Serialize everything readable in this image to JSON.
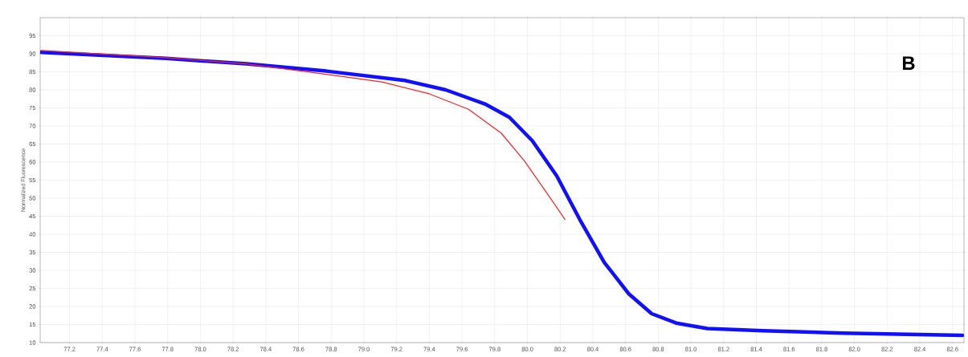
{
  "chart_data": {
    "type": "line",
    "ylabel": "Normalized Fluorescence",
    "annotations": [
      "**B**"
    ],
    "series": [
      {
        "color": "#ff2020",
        "x": [
          77.025,
          77.79,
          78.28,
          78.77,
          79.11,
          79.4,
          79.64,
          79.84,
          79.98,
          80.13,
          80.23
        ],
        "values": [
          90.9,
          88.9,
          87.2,
          84.3,
          82.2,
          78.9,
          74.6,
          68.0,
          60.4,
          50.7,
          44.1
        ]
      },
      {
        "color": "#1010ff",
        "x": [
          77.025,
          77.79,
          78.28,
          78.77,
          79.25,
          79.5,
          79.74,
          79.89,
          80.03,
          80.18,
          80.32,
          80.47,
          80.62,
          80.76,
          80.91,
          81.1,
          81.44,
          81.93,
          82.66
        ],
        "values": [
          90.4,
          88.7,
          87.2,
          85.2,
          82.6,
          80.0,
          76.1,
          72.4,
          65.9,
          56.1,
          44.1,
          32.2,
          23.5,
          18.0,
          15.4,
          13.9,
          13.3,
          12.6,
          12.0
        ]
      }
    ],
    "xlim": [
      77.02,
      82.67
    ],
    "xticks": [
      {
        "value": 77.2,
        "label": "77.2"
      },
      {
        "value": 77.4,
        "label": "77.4"
      },
      {
        "value": 77.6,
        "label": "77.6"
      },
      {
        "value": 77.8,
        "label": "77.8"
      },
      {
        "value": 78.0,
        "label": "78.0"
      },
      {
        "value": 78.2,
        "label": "78.2"
      },
      {
        "value": 78.4,
        "label": "78.4"
      },
      {
        "value": 78.6,
        "label": "78.6"
      },
      {
        "value": 78.8,
        "label": "78.8"
      },
      {
        "value": 79.0,
        "label": "79.0"
      },
      {
        "value": 79.2,
        "label": "79.2"
      },
      {
        "value": 79.4,
        "label": "79.4"
      },
      {
        "value": 79.6,
        "label": "79.6"
      },
      {
        "value": 79.8,
        "label": "79.8"
      },
      {
        "value": 80.0,
        "label": "80.0"
      },
      {
        "value": 80.2,
        "label": "80.2"
      },
      {
        "value": 80.4,
        "label": "80.4"
      },
      {
        "value": 80.6,
        "label": "80.6"
      },
      {
        "value": 80.8,
        "label": "80.8"
      },
      {
        "value": 81.0,
        "label": "81.0"
      },
      {
        "value": 81.2,
        "label": "81.2"
      },
      {
        "value": 81.4,
        "label": "81.4"
      },
      {
        "value": 81.6,
        "label": "81.6"
      },
      {
        "value": 81.8,
        "label": "81.8"
      },
      {
        "value": 82.0,
        "label": "82.0"
      },
      {
        "value": 82.2,
        "label": "82.2"
      },
      {
        "value": 82.4,
        "label": "82.4"
      },
      {
        "value": 82.6,
        "label": "82.6"
      }
    ],
    "ylim": [
      10,
      100
    ],
    "yticks": [
      10,
      15,
      20,
      25,
      30,
      35,
      40,
      45,
      50,
      55,
      60,
      65,
      70,
      75,
      80,
      85,
      90,
      95
    ],
    "grid": true
  }
}
